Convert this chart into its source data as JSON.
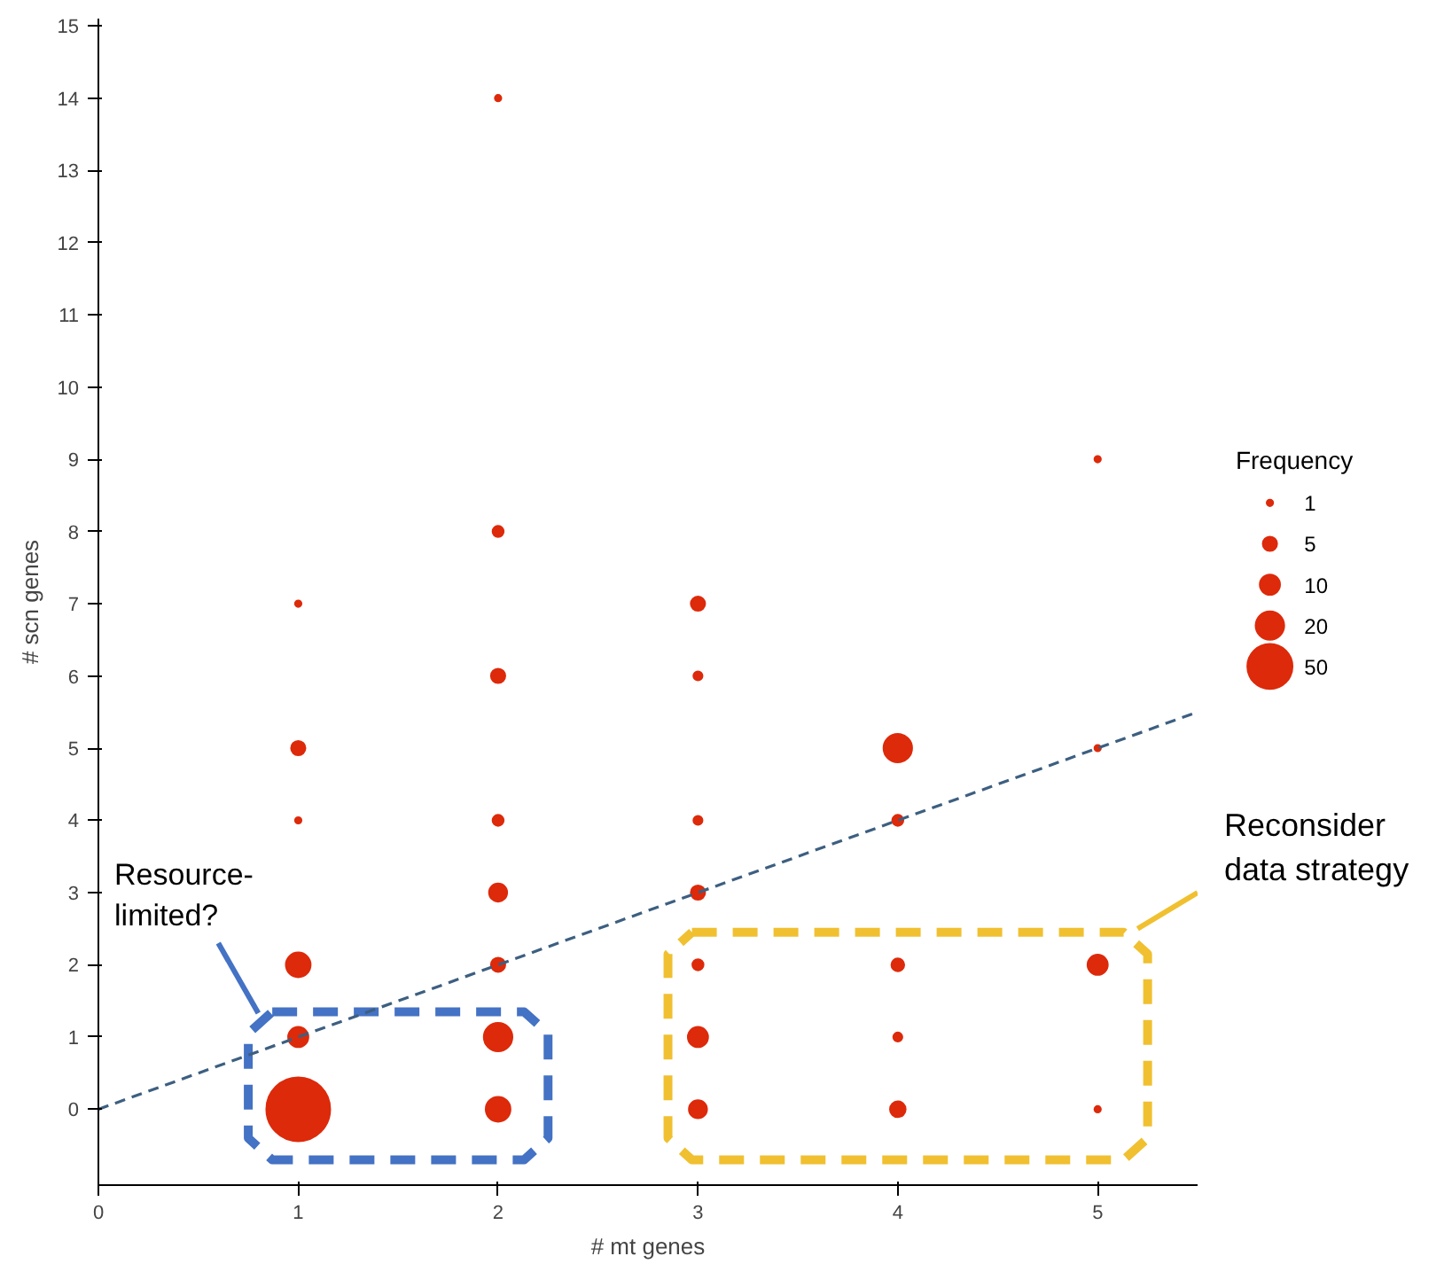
{
  "chart_data": {
    "type": "bubble",
    "xlabel": "# mt genes",
    "ylabel": "# scn genes",
    "legend_title": "Frequency",
    "xlim": [
      0,
      5.5
    ],
    "xticks": [
      0,
      1,
      2,
      3,
      4,
      5
    ],
    "ylim": [
      -1.05,
      15.1
    ],
    "yticks": [
      0,
      1,
      2,
      3,
      4,
      5,
      6,
      7,
      8,
      9,
      10,
      11,
      12,
      13,
      14,
      15
    ],
    "grid": false,
    "size_legend": [
      1,
      5,
      10,
      20,
      50
    ],
    "series": [
      {
        "color": "#dd2a0b",
        "x": [
          1,
          1,
          1,
          1,
          1,
          1,
          2,
          2,
          2,
          2,
          2,
          2,
          2,
          2,
          3,
          3,
          3,
          3,
          3,
          3,
          3,
          4,
          4,
          4,
          4,
          4,
          5,
          5,
          5,
          5
        ],
        "values": [
          7,
          5,
          4,
          2,
          1,
          0,
          14,
          8,
          6,
          4,
          3,
          2,
          1,
          0,
          7,
          6,
          4,
          3,
          2,
          1,
          0,
          5,
          4,
          2,
          1,
          0,
          9,
          5,
          2,
          0
        ],
        "sizes": [
          1,
          5,
          1,
          15,
          10,
          100,
          1,
          3,
          5,
          3,
          8,
          5,
          20,
          15,
          5,
          2,
          2,
          5,
          3,
          10,
          8,
          20,
          3,
          4,
          2,
          6,
          1,
          1,
          10,
          1
        ]
      },
      {
        "type": "line",
        "color": "#3d5f80",
        "line_style": "dashed",
        "x": [
          0,
          5.5
        ],
        "values": [
          0,
          5.5
        ]
      }
    ],
    "annotations": [
      "Resource-\nlimited?",
      "Reconsider\ndata strategy"
    ]
  }
}
